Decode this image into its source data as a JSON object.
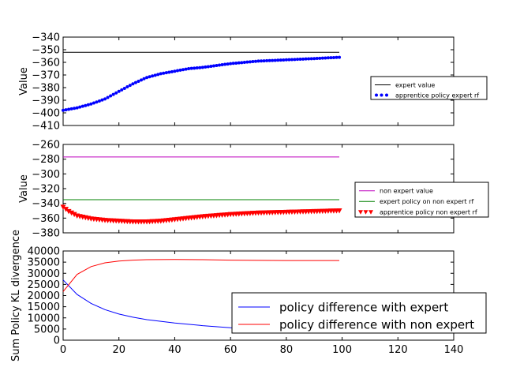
{
  "chart_data": [
    {
      "type": "line",
      "ylabel": "Value",
      "xlim": [
        0,
        140
      ],
      "ylim": [
        -410,
        -340
      ],
      "yticks": [
        -340,
        -350,
        -360,
        -370,
        -380,
        -390,
        -400,
        -410
      ],
      "legend_position": "right",
      "series": [
        {
          "name": "expert value",
          "style": "line",
          "color": "#000000",
          "x": [
            0,
            99
          ],
          "y": [
            -352,
            -352
          ]
        },
        {
          "name": "apprentice policy expert rf",
          "style": "dots",
          "color": "#0000ff",
          "x": [
            0,
            5,
            10,
            15,
            20,
            25,
            30,
            35,
            40,
            45,
            50,
            60,
            70,
            80,
            90,
            99
          ],
          "y": [
            -398,
            -396,
            -393,
            -389,
            -383,
            -377,
            -372,
            -369,
            -367,
            -365,
            -364,
            -361,
            -359,
            -358,
            -357,
            -356
          ]
        }
      ]
    },
    {
      "type": "line",
      "ylabel": "Value",
      "xlim": [
        0,
        140
      ],
      "ylim": [
        -380,
        -260
      ],
      "yticks": [
        -260,
        -280,
        -300,
        -320,
        -340,
        -360,
        -380
      ],
      "legend_position": "right",
      "series": [
        {
          "name": "non expert value",
          "style": "line",
          "color": "#bf00bf",
          "x": [
            0,
            99
          ],
          "y": [
            -277,
            -277
          ]
        },
        {
          "name": "expert policy on non expert rf",
          "style": "line",
          "color": "#008000",
          "x": [
            0,
            99
          ],
          "y": [
            -335,
            -335
          ]
        },
        {
          "name": "apprentice policy non expert rf",
          "style": "triangles",
          "color": "#ff0000",
          "x": [
            0,
            2,
            5,
            10,
            15,
            20,
            25,
            30,
            35,
            40,
            45,
            50,
            60,
            70,
            80,
            90,
            99
          ],
          "y": [
            -345,
            -351,
            -357,
            -361,
            -363,
            -364,
            -365,
            -365,
            -364,
            -362,
            -360,
            -358,
            -355,
            -353,
            -352,
            -351,
            -350
          ]
        }
      ]
    },
    {
      "type": "line",
      "ylabel": "Sum Policy KL divergence",
      "xlim": [
        0,
        140
      ],
      "ylim": [
        0,
        40000
      ],
      "xticks": [
        0,
        20,
        40,
        60,
        80,
        100,
        120,
        140
      ],
      "yticks": [
        0,
        5000,
        10000,
        15000,
        20000,
        25000,
        30000,
        35000,
        40000
      ],
      "legend_position": "lower right",
      "series": [
        {
          "name": "policy difference with expert",
          "style": "line",
          "color": "#0000ff",
          "x": [
            0,
            5,
            10,
            15,
            20,
            25,
            30,
            40,
            50,
            60,
            70,
            80,
            90,
            99
          ],
          "y": [
            27000,
            20500,
            16500,
            13700,
            11700,
            10300,
            9200,
            7700,
            6500,
            5600,
            5000,
            4500,
            4100,
            3900
          ]
        },
        {
          "name": "policy difference with non expert",
          "style": "line",
          "color": "#ff0000",
          "x": [
            0,
            5,
            10,
            15,
            20,
            25,
            30,
            40,
            50,
            60,
            70,
            80,
            90,
            99
          ],
          "y": [
            21800,
            29500,
            33000,
            34700,
            35500,
            35900,
            36100,
            36200,
            36100,
            35900,
            35800,
            35700,
            35700,
            35700
          ]
        }
      ]
    }
  ]
}
